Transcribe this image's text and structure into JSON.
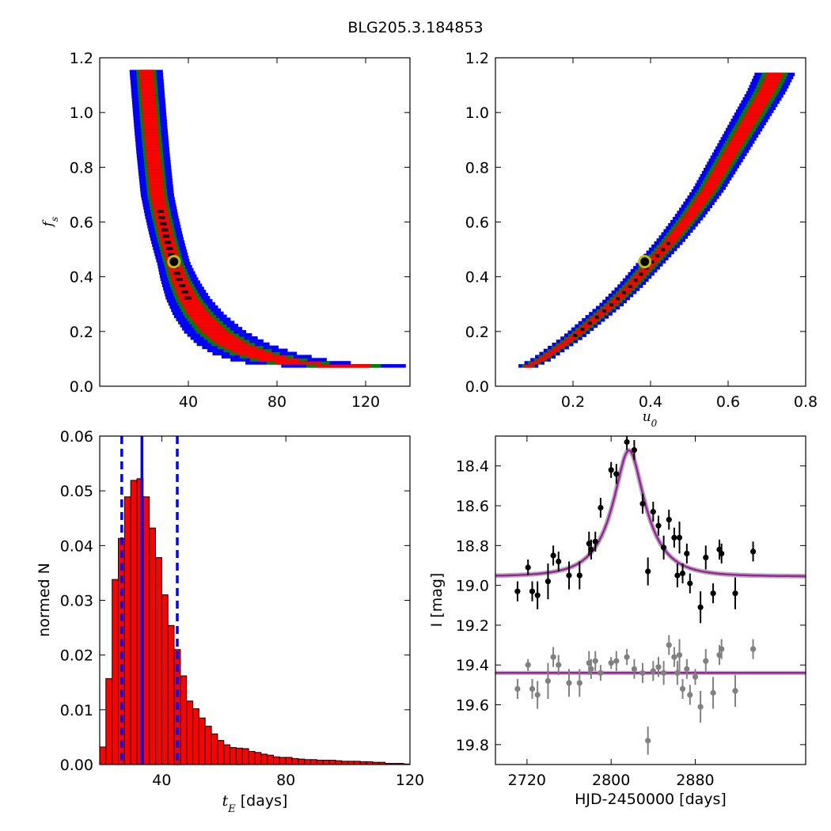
{
  "figure": {
    "title": "BLG205.3.184853"
  },
  "chart_data": [
    {
      "id": "fs_vs_tE",
      "type": "heatmap",
      "title": "",
      "xlabel": "",
      "ylabel_symbol": "f",
      "ylabel_subscript": "s",
      "xlim": [
        0,
        140
      ],
      "ylim": [
        0.0,
        1.2
      ],
      "xticks": [
        40,
        80,
        120
      ],
      "yticks": [
        0.0,
        0.2,
        0.4,
        0.6,
        0.8,
        1.0,
        1.2
      ],
      "xtick_labels": [
        "40",
        "80",
        "120"
      ],
      "ytick_labels": [
        "0.0",
        "0.2",
        "0.4",
        "0.6",
        "0.8",
        "1.0",
        "1.2"
      ],
      "colors": {
        "outer": "#0000ff",
        "middle": "#008000",
        "inner": "#ff0000",
        "core": "#000000",
        "marker_edge": "#bfbf00"
      },
      "best_fit": {
        "x": 33.5,
        "y": 0.455
      },
      "ridge": [
        [
          21,
          1.15
        ],
        [
          22,
          1.05
        ],
        [
          23,
          0.95
        ],
        [
          24,
          0.86
        ],
        [
          25,
          0.78
        ],
        [
          26,
          0.7
        ],
        [
          28,
          0.62
        ],
        [
          30,
          0.55
        ],
        [
          33,
          0.46
        ],
        [
          36,
          0.39
        ],
        [
          40,
          0.32
        ],
        [
          45,
          0.26
        ],
        [
          52,
          0.2
        ],
        [
          60,
          0.155
        ],
        [
          70,
          0.12
        ],
        [
          82,
          0.095
        ],
        [
          95,
          0.08
        ],
        [
          110,
          0.075
        ],
        [
          120,
          0.075
        ]
      ],
      "widths_tE": [
        2.5,
        3.2,
        4.5,
        7.5
      ],
      "core_range": [
        27,
        40
      ]
    },
    {
      "id": "fs_vs_u0",
      "type": "heatmap",
      "title": "",
      "xlabel_symbol": "u",
      "xlabel_subscript": "0",
      "ylabel": "",
      "xlim": [
        0.0,
        0.8
      ],
      "ylim": [
        0.0,
        1.2
      ],
      "xticks": [
        0.2,
        0.4,
        0.6,
        0.8
      ],
      "yticks": [
        0.0,
        0.2,
        0.4,
        0.6,
        0.8,
        1.0,
        1.2
      ],
      "xtick_labels": [
        "0.2",
        "0.4",
        "0.6",
        "0.8"
      ],
      "ytick_labels": [
        "0.0",
        "0.2",
        "0.4",
        "0.6",
        "0.8",
        "1.0",
        "1.2"
      ],
      "best_fit": {
        "x": 0.385,
        "y": 0.455
      },
      "ridge": [
        [
          0.085,
          0.075
        ],
        [
          0.12,
          0.1
        ],
        [
          0.16,
          0.14
        ],
        [
          0.2,
          0.18
        ],
        [
          0.25,
          0.24
        ],
        [
          0.3,
          0.3
        ],
        [
          0.35,
          0.37
        ],
        [
          0.4,
          0.45
        ],
        [
          0.45,
          0.53
        ],
        [
          0.5,
          0.62
        ],
        [
          0.55,
          0.72
        ],
        [
          0.6,
          0.84
        ],
        [
          0.65,
          0.96
        ],
        [
          0.7,
          1.08
        ],
        [
          0.72,
          1.14
        ]
      ],
      "widths_u0": [
        0.01,
        0.014,
        0.022,
        0.034
      ],
      "core_range": [
        0.2,
        0.45
      ]
    },
    {
      "id": "tE_histogram",
      "type": "bar",
      "title": "",
      "xlabel_symbol": "t",
      "xlabel_subscript": "E",
      "xlabel_suffix": " [days]",
      "ylabel": "normed N",
      "xlim": [
        20,
        120
      ],
      "ylim": [
        0.0,
        0.06
      ],
      "xticks": [
        40,
        80,
        120
      ],
      "yticks": [
        0.0,
        0.01,
        0.02,
        0.03,
        0.04,
        0.05,
        0.06
      ],
      "xtick_labels": [
        "40",
        "80",
        "120"
      ],
      "ytick_labels": [
        "0.00",
        "0.01",
        "0.02",
        "0.03",
        "0.04",
        "0.05",
        "0.06"
      ],
      "bin_start": 20,
      "bin_width": 2,
      "values": [
        0.0032,
        0.0157,
        0.0338,
        0.0413,
        0.0489,
        0.0519,
        0.0522,
        0.0489,
        0.0432,
        0.0378,
        0.031,
        0.0254,
        0.021,
        0.0162,
        0.0116,
        0.0102,
        0.0085,
        0.007,
        0.0056,
        0.0044,
        0.0036,
        0.0031,
        0.003,
        0.0029,
        0.0024,
        0.0022,
        0.0019,
        0.0017,
        0.0014,
        0.0013,
        0.0013,
        0.0011,
        0.001,
        0.0009,
        0.0009,
        0.0008,
        0.0008,
        0.0008,
        0.0007,
        0.0006,
        0.0006,
        0.0006,
        0.0005,
        0.0005,
        0.0004,
        0.0004,
        0.0002,
        0.0002,
        0.0002,
        0.0001
      ],
      "bar_color": "#ff0000",
      "median": 33.6,
      "interval": [
        27.1,
        45.0
      ],
      "line_color": "#0000ff"
    },
    {
      "id": "lightcurve",
      "type": "scatter",
      "title": "",
      "xlabel": "HJD-2450000 [days]",
      "ylabel": "I [mag]",
      "xlim": [
        2690,
        2985
      ],
      "ylim": [
        19.9,
        18.25
      ],
      "y_inverted": true,
      "xticks": [
        2720,
        2800,
        2880
      ],
      "yticks": [
        18.4,
        18.6,
        18.8,
        19.0,
        19.2,
        19.4,
        19.6,
        19.8
      ],
      "xtick_labels": [
        "2720",
        "2800",
        "2880"
      ],
      "ytick_labels": [
        "18.4",
        "18.6",
        "18.8",
        "19.0",
        "19.2",
        "19.4",
        "19.6",
        "19.8"
      ],
      "model": {
        "t0": 2817,
        "tE": 33.5,
        "u0": 0.385,
        "fs": 0.455,
        "baseline": 18.955,
        "color": "#a020a0"
      },
      "residual_offset": 19.44,
      "series": [
        {
          "name": "",
          "color": "#000000",
          "points": [
            [
              2711,
              19.03,
              0.05
            ],
            [
              2721,
              18.91,
              0.04
            ],
            [
              2725,
              19.03,
              0.05
            ],
            [
              2730,
              19.05,
              0.07
            ],
            [
              2740,
              18.98,
              0.09
            ],
            [
              2745,
              18.85,
              0.05
            ],
            [
              2750,
              18.88,
              0.05
            ],
            [
              2760,
              18.95,
              0.07
            ],
            [
              2770,
              18.95,
              0.07
            ],
            [
              2779,
              18.79,
              0.06
            ],
            [
              2781,
              18.82,
              0.05
            ],
            [
              2785,
              18.78,
              0.05
            ],
            [
              2790,
              18.61,
              0.05
            ],
            [
              2800,
              18.42,
              0.04
            ],
            [
              2805,
              18.44,
              0.05
            ],
            [
              2815,
              18.28,
              0.04
            ],
            [
              2822,
              18.32,
              0.05
            ],
            [
              2830,
              18.59,
              0.05
            ],
            [
              2835,
              18.93,
              0.07
            ],
            [
              2840,
              18.63,
              0.05
            ],
            [
              2845,
              18.7,
              0.05
            ],
            [
              2850,
              18.81,
              0.06
            ],
            [
              2855,
              18.67,
              0.05
            ],
            [
              2860,
              18.76,
              0.05
            ],
            [
              2863,
              18.95,
              0.06
            ],
            [
              2865,
              18.76,
              0.08
            ],
            [
              2868,
              18.94,
              0.05
            ],
            [
              2872,
              18.84,
              0.05
            ],
            [
              2875,
              18.99,
              0.05
            ],
            [
              2885,
              19.11,
              0.08
            ],
            [
              2890,
              18.86,
              0.06
            ],
            [
              2897,
              19.04,
              0.05
            ],
            [
              2903,
              18.82,
              0.05
            ],
            [
              2905,
              18.84,
              0.05
            ],
            [
              2918,
              19.04,
              0.08
            ],
            [
              2935,
              18.83,
              0.05
            ]
          ]
        },
        {
          "name": "",
          "color": "#808080",
          "points": [
            [
              2711,
              19.52,
              0.05
            ],
            [
              2721,
              19.4,
              0.03
            ],
            [
              2725,
              19.52,
              0.05
            ],
            [
              2730,
              19.55,
              0.07
            ],
            [
              2740,
              19.48,
              0.09
            ],
            [
              2745,
              19.36,
              0.05
            ],
            [
              2750,
              19.4,
              0.05
            ],
            [
              2760,
              19.49,
              0.07
            ],
            [
              2770,
              19.49,
              0.07
            ],
            [
              2779,
              19.39,
              0.06
            ],
            [
              2781,
              19.42,
              0.05
            ],
            [
              2785,
              19.38,
              0.05
            ],
            [
              2790,
              19.44,
              0.04
            ],
            [
              2800,
              19.39,
              0.03
            ],
            [
              2805,
              19.38,
              0.05
            ],
            [
              2815,
              19.36,
              0.04
            ],
            [
              2822,
              19.42,
              0.05
            ],
            [
              2830,
              19.44,
              0.05
            ],
            [
              2835,
              19.78,
              0.07
            ],
            [
              2840,
              19.43,
              0.05
            ],
            [
              2845,
              19.41,
              0.05
            ],
            [
              2850,
              19.44,
              0.06
            ],
            [
              2855,
              19.3,
              0.05
            ],
            [
              2860,
              19.36,
              0.05
            ],
            [
              2863,
              19.44,
              0.06
            ],
            [
              2865,
              19.35,
              0.08
            ],
            [
              2868,
              19.52,
              0.05
            ],
            [
              2872,
              19.42,
              0.05
            ],
            [
              2875,
              19.55,
              0.05
            ],
            [
              2880,
              19.46,
              0.04
            ],
            [
              2885,
              19.61,
              0.08
            ],
            [
              2890,
              19.38,
              0.06
            ],
            [
              2897,
              19.54,
              0.08
            ],
            [
              2903,
              19.35,
              0.05
            ],
            [
              2905,
              19.32,
              0.05
            ],
            [
              2918,
              19.53,
              0.08
            ],
            [
              2935,
              19.32,
              0.05
            ]
          ]
        }
      ]
    }
  ]
}
